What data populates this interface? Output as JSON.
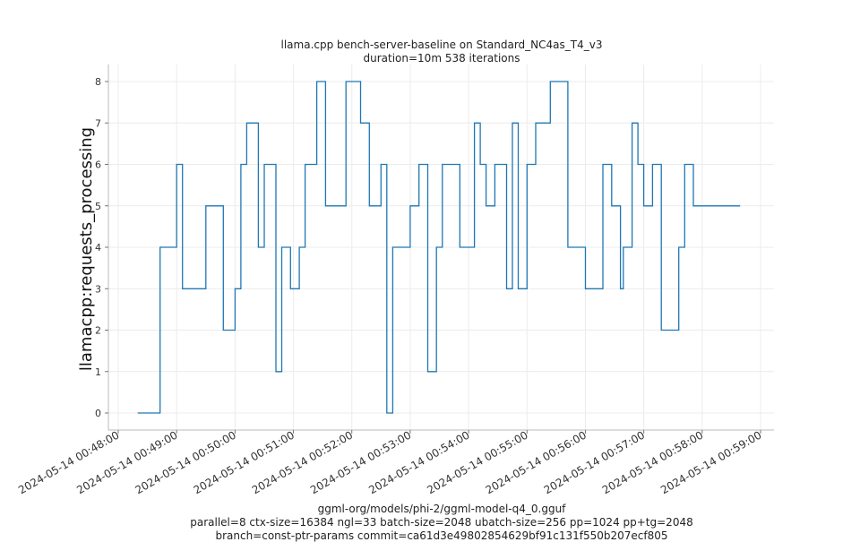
{
  "chart_data": {
    "type": "line",
    "title": "llama.cpp bench-server-baseline on Standard_NC4as_T4_v3",
    "subtitle": "duration=10m 538 iterations",
    "xlabel": "",
    "ylabel": "llamacpp:requests_processing",
    "footer_lines": [
      "ggml-org/models/phi-2/ggml-model-q4_0.gguf",
      "parallel=8 ctx-size=16384 ngl=33 batch-size=2048 ubatch-size=256 pp=1024 pp+tg=2048",
      "branch=const-ptr-params commit=ca61d3e49802854629bf91c131f550b207ecf805"
    ],
    "x_axis_type": "datetime",
    "xlim": [
      "2024-05-14 00:48:00",
      "2024-05-14 00:59:00"
    ],
    "xtick_labels": [
      "2024-05-14 00:48:00",
      "2024-05-14 00:49:00",
      "2024-05-14 00:50:00",
      "2024-05-14 00:51:00",
      "2024-05-14 00:52:00",
      "2024-05-14 00:53:00",
      "2024-05-14 00:54:00",
      "2024-05-14 00:55:00",
      "2024-05-14 00:56:00",
      "2024-05-14 00:57:00",
      "2024-05-14 00:58:00",
      "2024-05-14 00:59:00"
    ],
    "ylim": [
      0,
      8
    ],
    "ytick_labels": [
      "0",
      "1",
      "2",
      "3",
      "4",
      "5",
      "6",
      "7",
      "8"
    ],
    "grid": true,
    "line_color": "#1f77b4",
    "series": [
      {
        "x": [
          "2024-05-14 00:48:20",
          "2024-05-14 00:48:40",
          "2024-05-14 00:48:43",
          "2024-05-14 00:48:48",
          "2024-05-14 00:49:00",
          "2024-05-14 00:49:06",
          "2024-05-14 00:49:30",
          "2024-05-14 00:49:48",
          "2024-05-14 00:49:54",
          "2024-05-14 00:50:00",
          "2024-05-14 00:50:06",
          "2024-05-14 00:50:12",
          "2024-05-14 00:50:24",
          "2024-05-14 00:50:30",
          "2024-05-14 00:50:42",
          "2024-05-14 00:50:48",
          "2024-05-14 00:50:57",
          "2024-05-14 00:51:06",
          "2024-05-14 00:51:12",
          "2024-05-14 00:51:24",
          "2024-05-14 00:51:33",
          "2024-05-14 00:51:42",
          "2024-05-14 00:51:54",
          "2024-05-14 00:52:00",
          "2024-05-14 00:52:09",
          "2024-05-14 00:52:18",
          "2024-05-14 00:52:24",
          "2024-05-14 00:52:30",
          "2024-05-14 00:52:36",
          "2024-05-14 00:52:42",
          "2024-05-14 00:52:48",
          "2024-05-14 00:53:00",
          "2024-05-14 00:53:09",
          "2024-05-14 00:53:18",
          "2024-05-14 00:53:27",
          "2024-05-14 00:53:33",
          "2024-05-14 00:53:39",
          "2024-05-14 00:53:51",
          "2024-05-14 00:54:06",
          "2024-05-14 00:54:12",
          "2024-05-14 00:54:18",
          "2024-05-14 00:54:27",
          "2024-05-14 00:54:39",
          "2024-05-14 00:54:45",
          "2024-05-14 00:54:51",
          "2024-05-14 00:55:00",
          "2024-05-14 00:55:09",
          "2024-05-14 00:55:18",
          "2024-05-14 00:55:24",
          "2024-05-14 00:55:30",
          "2024-05-14 00:55:42",
          "2024-05-14 00:56:00",
          "2024-05-14 00:56:18",
          "2024-05-14 00:56:27",
          "2024-05-14 00:56:36",
          "2024-05-14 00:56:39",
          "2024-05-14 00:56:48",
          "2024-05-14 00:56:54",
          "2024-05-14 00:57:00",
          "2024-05-14 00:57:09",
          "2024-05-14 00:57:18",
          "2024-05-14 00:57:24",
          "2024-05-14 00:57:36",
          "2024-05-14 00:57:42",
          "2024-05-14 00:57:51",
          "2024-05-14 00:58:00",
          "2024-05-14 00:58:09",
          "2024-05-14 00:58:18",
          "2024-05-14 00:58:27",
          "2024-05-14 00:58:33",
          "2024-05-14 00:58:39"
        ],
        "values": [
          0,
          0,
          4,
          4,
          6,
          3,
          5,
          2,
          2,
          3,
          6,
          7,
          4,
          6,
          1,
          4,
          3,
          4,
          6,
          8,
          5,
          5,
          8,
          8,
          7,
          5,
          5,
          6,
          0,
          4,
          4,
          5,
          6,
          1,
          4,
          6,
          6,
          4,
          7,
          6,
          5,
          6,
          3,
          7,
          3,
          6,
          7,
          7,
          8,
          8,
          4,
          3,
          6,
          5,
          3,
          4,
          7,
          6,
          5,
          6,
          2,
          2,
          4,
          6,
          5,
          5,
          5,
          5,
          5,
          5,
          5
        ]
      }
    ]
  }
}
